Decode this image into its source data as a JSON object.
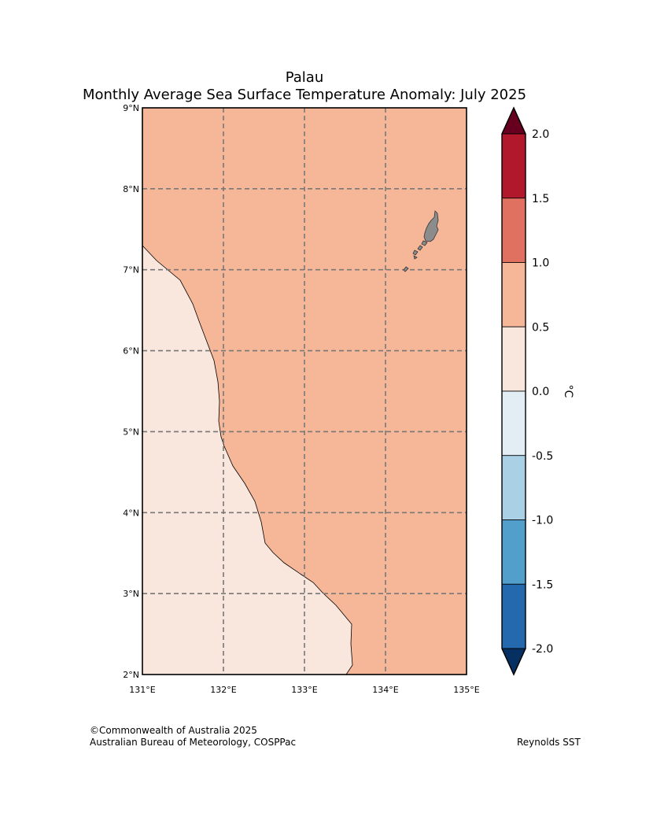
{
  "title": "Palau",
  "subtitle": "Monthly Average Sea Surface Temperature Anomaly: July 2025",
  "map": {
    "lon_range": [
      131,
      135
    ],
    "lat_range": [
      2,
      9
    ],
    "lon_ticks": [
      "131°E",
      "132°E",
      "133°E",
      "134°E",
      "135°E"
    ],
    "lat_ticks": [
      "2°N",
      "3°N",
      "4°N",
      "5°N",
      "6°N",
      "7°N",
      "8°N",
      "9°N"
    ],
    "gridlines": "dashed",
    "background_anomaly_class": "0.5 to 1.0",
    "western_region_class": "0.0 to 0.5",
    "land_color": "#8c8c8c"
  },
  "colorbar": {
    "unit": "°C",
    "tick_labels": [
      "2.0",
      "1.5",
      "1.0",
      "0.5",
      "0.0",
      "-0.5",
      "-1.0",
      "-1.5",
      "-2.0"
    ],
    "over_color": "#67001f",
    "under_color": "#053061",
    "bins": [
      {
        "range": [
          1.5,
          2.0
        ],
        "color": "#b2182b"
      },
      {
        "range": [
          1.0,
          1.5
        ],
        "color": "#e07060"
      },
      {
        "range": [
          0.5,
          1.0
        ],
        "color": "#f6b799"
      },
      {
        "range": [
          0.0,
          0.5
        ],
        "color": "#f9e6dc"
      },
      {
        "range": [
          -0.5,
          0.0
        ],
        "color": "#e2eef4"
      },
      {
        "range": [
          -1.0,
          -0.5
        ],
        "color": "#a9d0e5"
      },
      {
        "range": [
          -1.5,
          -1.0
        ],
        "color": "#529fcc"
      },
      {
        "range": [
          -2.0,
          -1.5
        ],
        "color": "#2468ad"
      }
    ]
  },
  "footer": {
    "copyright": "©Commonwealth of Australia 2025",
    "agency": "Australian Bureau of Meteorology, COSPPac",
    "source": "Reynolds SST"
  }
}
